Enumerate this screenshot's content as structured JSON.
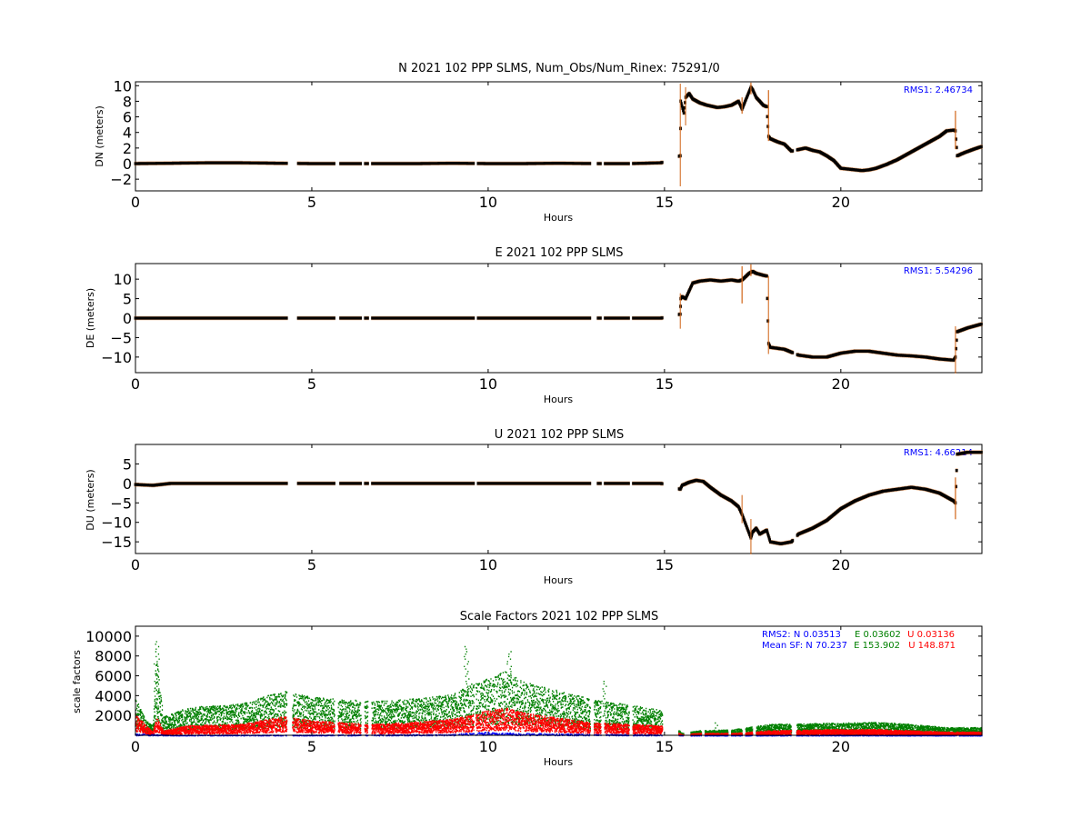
{
  "chart_data": [
    {
      "type": "scatter",
      "title": "N 2021 102 PPP  SLMS, Num_Obs/Num_Rinex: 75291/0",
      "xlabel": "Hours",
      "ylabel": "DN (meters)",
      "xlim": [
        0,
        24
      ],
      "ylim": [
        -3.5,
        10.5
      ],
      "xticks": [
        "0",
        "5",
        "10",
        "15",
        "20"
      ],
      "yticks": [
        "−2",
        "0",
        "2",
        "4",
        "6",
        "8",
        "10"
      ],
      "rms_label": "RMS1:  2.46734",
      "series_colors": {
        "points": "#000000",
        "spikes": "#d2691e"
      },
      "gaps": [
        [
          4.3,
          4.6
        ],
        [
          5.65,
          5.8
        ],
        [
          6.4,
          6.5
        ],
        [
          6.6,
          6.7
        ],
        [
          9.6,
          9.7
        ],
        [
          12.9,
          13.1
        ],
        [
          13.2,
          13.3
        ],
        [
          14.0,
          14.1
        ],
        [
          14.95,
          15.4
        ],
        [
          18.65,
          18.75
        ]
      ],
      "x": [
        0,
        1,
        2,
        3,
        4,
        5,
        6,
        7,
        8,
        9,
        10,
        11,
        12,
        13,
        14,
        14.9,
        15.45,
        15.46,
        15.55,
        15.6,
        15.7,
        15.8,
        16.0,
        16.2,
        16.5,
        16.7,
        16.9,
        17.1,
        17.2,
        17.45,
        17.5,
        17.6,
        17.8,
        17.9,
        17.95,
        18.0,
        18.2,
        18.4,
        18.6,
        18.8,
        19.0,
        19.2,
        19.4,
        19.6,
        19.8,
        20.0,
        20.2,
        20.4,
        20.6,
        20.8,
        21.0,
        21.3,
        21.6,
        22.0,
        22.4,
        22.8,
        23.0,
        23.2,
        23.25,
        23.3,
        23.5,
        23.8,
        24.0
      ],
      "y": [
        0,
        0.05,
        0.1,
        0.1,
        0.05,
        0,
        0,
        0,
        0,
        0.05,
        0,
        0,
        0.05,
        0,
        0,
        0.1,
        1.0,
        8.0,
        6.5,
        8.5,
        9.0,
        8.3,
        7.8,
        7.5,
        7.2,
        7.3,
        7.5,
        8.0,
        7.0,
        9.8,
        9.5,
        8.5,
        7.5,
        7.3,
        3.5,
        3.2,
        2.8,
        2.5,
        1.6,
        1.8,
        2.0,
        1.7,
        1.5,
        1.0,
        0.4,
        -0.6,
        -0.7,
        -0.8,
        -0.9,
        -0.8,
        -0.6,
        -0.1,
        0.5,
        1.5,
        2.5,
        3.5,
        4.2,
        4.3,
        4.2,
        1.0,
        1.4,
        1.9,
        2.2
      ],
      "spikes": [
        [
          15.45,
          -2.8,
          10.3
        ],
        [
          15.6,
          5.0,
          9.8
        ],
        [
          17.2,
          6.5,
          8.5
        ],
        [
          17.45,
          9.0,
          10.5
        ],
        [
          17.95,
          3.0,
          9.5
        ],
        [
          23.25,
          2.0,
          6.8
        ]
      ]
    },
    {
      "type": "scatter",
      "title": "E 2021 102 PPP  SLMS",
      "xlabel": "Hours",
      "ylabel": "DE (meters)",
      "xlim": [
        0,
        24
      ],
      "ylim": [
        -14,
        14
      ],
      "xticks": [
        "0",
        "5",
        "10",
        "15",
        "20"
      ],
      "yticks": [
        "−10",
        "−5",
        "0",
        "5",
        "10"
      ],
      "rms_label": "RMS1:  5.54296",
      "series_colors": {
        "points": "#000000",
        "spikes": "#d2691e"
      },
      "gaps": [
        [
          4.3,
          4.6
        ],
        [
          5.65,
          5.8
        ],
        [
          6.4,
          6.5
        ],
        [
          6.6,
          6.7
        ],
        [
          9.6,
          9.7
        ],
        [
          12.9,
          13.1
        ],
        [
          13.2,
          13.3
        ],
        [
          14.0,
          14.1
        ],
        [
          14.95,
          15.4
        ],
        [
          18.65,
          18.75
        ]
      ],
      "x": [
        0,
        2,
        4,
        6,
        8,
        10,
        12,
        14,
        14.9,
        15.45,
        15.46,
        15.5,
        15.6,
        15.7,
        15.8,
        16.0,
        16.3,
        16.6,
        16.9,
        17.1,
        17.2,
        17.4,
        17.5,
        17.6,
        17.8,
        17.9,
        17.95,
        18.0,
        18.4,
        18.8,
        19.2,
        19.6,
        20.0,
        20.4,
        20.8,
        21.2,
        21.6,
        22.0,
        22.4,
        22.8,
        23.2,
        23.25,
        23.3,
        23.6,
        24.0
      ],
      "y": [
        0,
        0,
        0,
        0,
        0,
        0,
        0,
        0,
        0,
        1.0,
        5.0,
        5.5,
        5.0,
        7.0,
        9.0,
        9.5,
        9.8,
        9.5,
        9.8,
        9.5,
        9.8,
        11.5,
        12.0,
        11.5,
        11.0,
        10.8,
        -6.5,
        -7.5,
        -8.0,
        -9.5,
        -10.0,
        -10.0,
        -9.0,
        -8.5,
        -8.5,
        -9.0,
        -9.5,
        -9.7,
        -10.0,
        -10.5,
        -10.8,
        -10.0,
        -3.5,
        -2.5,
        -1.5
      ],
      "spikes": [
        [
          15.45,
          -2.5,
          6.5
        ],
        [
          17.2,
          4.0,
          13.5
        ],
        [
          17.45,
          11.0,
          14.0
        ],
        [
          17.95,
          -9.0,
          11.0
        ],
        [
          23.25,
          -14.0,
          -2.0
        ]
      ]
    },
    {
      "type": "scatter",
      "title": "U 2021 102 PPP  SLMS",
      "xlabel": "Hours",
      "ylabel": "DU (meters)",
      "xlim": [
        0,
        24
      ],
      "ylim": [
        -18,
        10
      ],
      "xticks": [
        "0",
        "5",
        "10",
        "15",
        "20"
      ],
      "yticks": [
        "−15",
        "−10",
        "−5",
        "0",
        "5"
      ],
      "rms_label": "RMS1:  4.66214",
      "series_colors": {
        "points": "#000000",
        "spikes": "#d2691e"
      },
      "gaps": [
        [
          4.3,
          4.6
        ],
        [
          5.65,
          5.8
        ],
        [
          6.4,
          6.5
        ],
        [
          6.6,
          6.7
        ],
        [
          9.6,
          9.7
        ],
        [
          12.9,
          13.1
        ],
        [
          13.2,
          13.3
        ],
        [
          14.0,
          14.1
        ],
        [
          14.95,
          15.4
        ],
        [
          18.65,
          18.75
        ]
      ],
      "x": [
        0,
        0.5,
        1.0,
        2,
        4,
        6,
        8,
        10,
        12,
        14,
        14.9,
        15.45,
        15.5,
        15.7,
        15.9,
        16.1,
        16.3,
        16.6,
        16.9,
        17.1,
        17.2,
        17.45,
        17.5,
        17.6,
        17.7,
        17.9,
        18.0,
        18.3,
        18.6,
        18.8,
        19.2,
        19.6,
        20.0,
        20.4,
        20.8,
        21.2,
        21.6,
        22.0,
        22.4,
        22.8,
        23.2,
        23.25,
        23.3,
        23.6,
        24.0
      ],
      "y": [
        -0.3,
        -0.5,
        0,
        0,
        0,
        0,
        0,
        0,
        0,
        0,
        0,
        -1.5,
        -0.5,
        0.3,
        0.8,
        0.5,
        -1.0,
        -3.0,
        -4.5,
        -6.0,
        -8.0,
        -14.0,
        -12.5,
        -11.5,
        -13.0,
        -12.0,
        -15.0,
        -15.5,
        -15.0,
        -13.0,
        -11.5,
        -9.5,
        -6.5,
        -4.5,
        -3.0,
        -2.0,
        -1.5,
        -1.0,
        -1.5,
        -2.5,
        -4.5,
        -5.0,
        7.5,
        8.0,
        8.0
      ],
      "spikes": [
        [
          17.2,
          -10.0,
          -3.0
        ],
        [
          17.45,
          -18.0,
          -9.0
        ],
        [
          23.25,
          -9.0,
          1.5
        ]
      ]
    },
    {
      "type": "scatter",
      "title": "Scale Factors 2021 102 PPP  SLMS",
      "xlabel": "Hours",
      "ylabel": "scale factors",
      "xlim": [
        0,
        24
      ],
      "ylim": [
        0,
        11000
      ],
      "xticks": [
        "0",
        "5",
        "10",
        "15",
        "20"
      ],
      "yticks": [
        "2000",
        "4000",
        "6000",
        "8000",
        "10000"
      ],
      "rms2_label": "RMS2: N  0.03513    E  0.03602  U  0.03136",
      "mean_label": "Mean SF: N  70.237  E 153.902   U 148.871",
      "colors": {
        "N": "#0000ff",
        "E": "#008000",
        "U": "#ff0000"
      },
      "gaps": [
        [
          4.3,
          4.45
        ],
        [
          5.65,
          5.75
        ],
        [
          6.4,
          6.5
        ],
        [
          6.6,
          6.7
        ],
        [
          9.6,
          9.65
        ],
        [
          12.9,
          13.0
        ],
        [
          13.2,
          13.3
        ],
        [
          14.0,
          14.1
        ],
        [
          14.95,
          15.4
        ],
        [
          15.55,
          15.75
        ],
        [
          16.05,
          16.15
        ],
        [
          16.8,
          16.9
        ],
        [
          17.2,
          17.3
        ],
        [
          17.5,
          17.6
        ],
        [
          18.6,
          18.75
        ]
      ],
      "series": [
        {
          "name": "E",
          "x": [
            0,
            0.3,
            0.5,
            0.6,
            0.8,
            1.5,
            3,
            4.2,
            5,
            6,
            7,
            8,
            9,
            9.5,
            10,
            10.5,
            11,
            12,
            13,
            14,
            14.9,
            15.5,
            16,
            17,
            18,
            19,
            20,
            21,
            22,
            23,
            24
          ],
          "y": [
            3000,
            1200,
            800,
            6500,
            1500,
            2200,
            2500,
            3500,
            3000,
            2800,
            2700,
            2900,
            3200,
            4000,
            4500,
            5000,
            4200,
            3500,
            2800,
            2400,
            2000,
            200,
            400,
            500,
            900,
            950,
            1000,
            1050,
            900,
            650,
            650
          ]
        },
        {
          "name": "U",
          "x": [
            0,
            0.3,
            0.5,
            0.6,
            0.8,
            1.5,
            3,
            4.2,
            5,
            6,
            7,
            8,
            9,
            9.5,
            10,
            10.5,
            11,
            12,
            13,
            14,
            14.9,
            15.5,
            16,
            17,
            18,
            19,
            20,
            21,
            22,
            23,
            24
          ],
          "y": [
            1800,
            800,
            300,
            1500,
            400,
            800,
            900,
            1500,
            1200,
            1000,
            900,
            1100,
            1300,
            1600,
            2000,
            2200,
            1800,
            1400,
            1000,
            900,
            800,
            100,
            200,
            200,
            400,
            450,
            500,
            500,
            400,
            300,
            300
          ]
        },
        {
          "name": "N",
          "x": [
            0,
            1,
            3,
            5,
            7,
            9,
            9.5,
            10,
            11,
            12,
            13,
            14,
            14.9,
            15.5,
            18,
            20,
            22,
            24
          ],
          "y": [
            150,
            50,
            60,
            60,
            80,
            100,
            250,
            300,
            200,
            150,
            120,
            100,
            80,
            30,
            40,
            50,
            40,
            30
          ]
        }
      ],
      "spikes": [
        [
          0.6,
          1500,
          9500
        ],
        [
          9.4,
          5000,
          9200
        ],
        [
          10.6,
          6000,
          8700
        ],
        [
          16.5,
          300,
          1500
        ],
        [
          13.3,
          2000,
          5600
        ]
      ]
    }
  ]
}
